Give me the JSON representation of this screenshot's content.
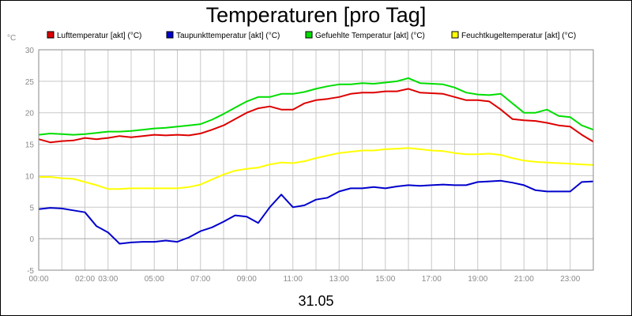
{
  "chart_data": {
    "type": "line",
    "title": "Temperaturen [pro Tag]",
    "unit_label": "°C",
    "date_label": "31.05",
    "ylim": [
      -5,
      30
    ],
    "y_ticks": [
      -5,
      0,
      5,
      10,
      15,
      20,
      25,
      30
    ],
    "xlim": [
      0,
      24
    ],
    "x_tick_labels": [
      {
        "h": 0,
        "label": "00:00"
      },
      {
        "h": 2,
        "label": "02:00"
      },
      {
        "h": 3,
        "label": "03:00"
      },
      {
        "h": 5,
        "label": "05:00"
      },
      {
        "h": 7,
        "label": "07:00"
      },
      {
        "h": 9,
        "label": "09:00"
      },
      {
        "h": 11,
        "label": "11:00"
      },
      {
        "h": 13,
        "label": "13:00"
      },
      {
        "h": 15,
        "label": "15:00"
      },
      {
        "h": 17,
        "label": "17:00"
      },
      {
        "h": 19,
        "label": "19:00"
      },
      {
        "h": 21,
        "label": "21:00"
      },
      {
        "h": 23,
        "label": "23:00"
      }
    ],
    "grid": true,
    "legend_position": "top",
    "x": [
      0,
      0.5,
      1,
      1.5,
      2,
      2.5,
      3,
      3.5,
      4,
      4.5,
      5,
      5.5,
      6,
      6.5,
      7,
      7.5,
      8,
      8.5,
      9,
      9.5,
      10,
      10.5,
      11,
      11.5,
      12,
      12.5,
      13,
      13.5,
      14,
      14.5,
      15,
      15.5,
      16,
      16.5,
      17,
      17.5,
      18,
      18.5,
      19,
      19.5,
      20,
      20.5,
      21,
      21.5,
      22,
      22.5,
      23,
      23.5,
      24
    ],
    "series": [
      {
        "name": "Lufttemperatur [akt] (°C)",
        "color": "#dd0000",
        "values": [
          15.8,
          15.3,
          15.5,
          15.6,
          16.0,
          15.8,
          16.0,
          16.3,
          16.1,
          16.3,
          16.5,
          16.4,
          16.5,
          16.4,
          16.7,
          17.3,
          18.0,
          19.0,
          20.0,
          20.7,
          21.0,
          20.5,
          20.5,
          21.5,
          22.0,
          22.2,
          22.5,
          23.0,
          23.2,
          23.2,
          23.4,
          23.4,
          23.8,
          23.2,
          23.1,
          23.0,
          22.5,
          22.0,
          22.0,
          21.8,
          20.5,
          19.0,
          18.8,
          18.7,
          18.4,
          18.0,
          17.8,
          16.5,
          15.4
        ]
      },
      {
        "name": "Taupunkttemperatur [akt] (°C)",
        "color": "#0000cc",
        "values": [
          4.7,
          4.9,
          4.8,
          4.5,
          4.2,
          2.0,
          1.0,
          -0.8,
          -0.6,
          -0.5,
          -0.5,
          -0.3,
          -0.5,
          0.2,
          1.2,
          1.8,
          2.7,
          3.7,
          3.5,
          2.5,
          5.0,
          7.0,
          5.0,
          5.3,
          6.2,
          6.5,
          7.5,
          8.0,
          8.0,
          8.2,
          8.0,
          8.3,
          8.5,
          8.4,
          8.5,
          8.6,
          8.5,
          8.5,
          9.0,
          9.1,
          9.2,
          8.9,
          8.5,
          7.7,
          7.5,
          7.5,
          7.5,
          9.0,
          9.1
        ]
      },
      {
        "name": "Gefuehlte Temperatur [akt] (°C)",
        "color": "#00dd00",
        "values": [
          16.5,
          16.7,
          16.6,
          16.5,
          16.6,
          16.8,
          17.0,
          17.0,
          17.1,
          17.3,
          17.5,
          17.6,
          17.8,
          18.0,
          18.2,
          18.9,
          19.8,
          20.8,
          21.8,
          22.5,
          22.5,
          23.0,
          23.0,
          23.3,
          23.8,
          24.2,
          24.5,
          24.5,
          24.7,
          24.6,
          24.8,
          25.0,
          25.5,
          24.7,
          24.6,
          24.5,
          24.0,
          23.2,
          22.9,
          22.8,
          23.0,
          21.5,
          20.0,
          20.0,
          20.5,
          19.5,
          19.3,
          18.0,
          17.3
        ]
      },
      {
        "name": "Feuchtkugeltemperatur [akt] (°C)",
        "color": "#ffff00",
        "values": [
          9.8,
          9.8,
          9.6,
          9.5,
          9.0,
          8.5,
          7.9,
          7.9,
          8.0,
          8.0,
          8.0,
          8.0,
          8.0,
          8.2,
          8.6,
          9.4,
          10.2,
          10.8,
          11.1,
          11.3,
          11.8,
          12.1,
          12.0,
          12.3,
          12.8,
          13.2,
          13.6,
          13.8,
          14.0,
          14.0,
          14.2,
          14.3,
          14.4,
          14.2,
          14.0,
          13.9,
          13.6,
          13.4,
          13.4,
          13.5,
          13.3,
          12.8,
          12.4,
          12.2,
          12.1,
          12.0,
          11.9,
          11.8,
          11.7
        ]
      }
    ]
  }
}
